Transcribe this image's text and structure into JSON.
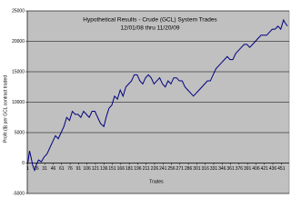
{
  "chart_data": {
    "type": "line",
    "title": "Hypothetical Results - Crude (GCL) System Trades",
    "subtitle": "12/01/08  thru   11/20/09",
    "y_label": "Profit ($) per GCL contract traded",
    "x_label": "Trades",
    "color": "#000080",
    "grid": true,
    "xlim": [
      0,
      465
    ],
    "xticks": [
      1,
      16,
      31,
      46,
      61,
      76,
      91,
      106,
      121,
      136,
      151,
      166,
      181,
      196,
      211,
      226,
      241,
      256,
      271,
      286,
      301,
      316,
      331,
      346,
      361,
      376,
      391,
      406,
      421,
      436,
      451
    ],
    "ylim": [
      -5000,
      25000
    ],
    "yticks": [
      -5000,
      0,
      5000,
      10000,
      15000,
      20000,
      25000
    ],
    "x": [
      1,
      4,
      7,
      10,
      13,
      16,
      20,
      25,
      30,
      35,
      40,
      45,
      50,
      55,
      60,
      65,
      70,
      75,
      80,
      85,
      90,
      95,
      100,
      105,
      110,
      115,
      120,
      125,
      130,
      136,
      140,
      145,
      150,
      155,
      160,
      165,
      170,
      175,
      180,
      185,
      190,
      195,
      200,
      205,
      210,
      215,
      220,
      225,
      230,
      235,
      240,
      245,
      250,
      255,
      260,
      265,
      270,
      275,
      280,
      285,
      290,
      295,
      300,
      305,
      310,
      315,
      320,
      325,
      330,
      335,
      340,
      345,
      350,
      355,
      360,
      365,
      370,
      375,
      380,
      385,
      390,
      395,
      400,
      405,
      410,
      415,
      420,
      425,
      430,
      435,
      440,
      445,
      450,
      455,
      458,
      462
    ],
    "values": [
      0,
      2000,
      800,
      -500,
      -1200,
      -300,
      500,
      200,
      1000,
      1500,
      2500,
      3500,
      4500,
      4000,
      5000,
      6000,
      7500,
      7000,
      8500,
      8000,
      8000,
      7500,
      8500,
      8000,
      7500,
      8500,
      8500,
      7500,
      6500,
      6000,
      7500,
      9000,
      9500,
      11000,
      10500,
      12000,
      11000,
      12500,
      13000,
      13500,
      14500,
      14500,
      13500,
      13000,
      14000,
      14500,
      14000,
      13000,
      13500,
      14000,
      13000,
      12500,
      13500,
      13000,
      14000,
      14000,
      13500,
      13500,
      12500,
      12000,
      11500,
      11000,
      11500,
      12000,
      12500,
      13000,
      13500,
      13500,
      14500,
      15500,
      16000,
      16500,
      17000,
      17500,
      17000,
      17000,
      18000,
      18500,
      19000,
      19500,
      19500,
      19000,
      19500,
      20000,
      20500,
      21000,
      21000,
      21000,
      21500,
      22000,
      22000,
      22500,
      22000,
      23500,
      23000,
      22500
    ]
  }
}
